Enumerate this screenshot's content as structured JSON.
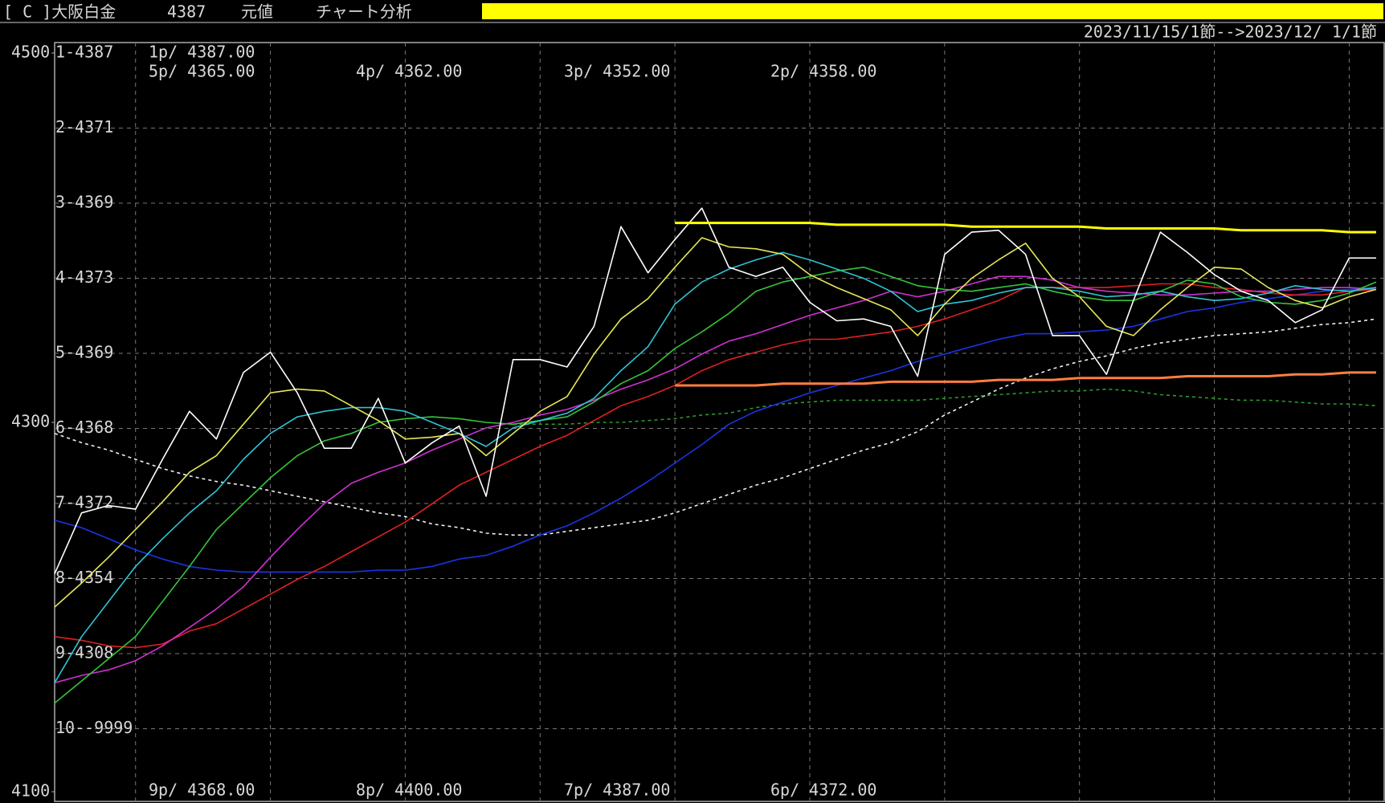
{
  "header": {
    "code": "[ C ]大阪白金",
    "price": "4387",
    "mode": "元値",
    "menu": "チャート分析",
    "period": "2023/11/15/1節-->2023/12/ 1/1節"
  },
  "panel_labels": [
    "1-4387",
    "2-4371",
    "3-4369",
    "4-4373",
    "5-4369",
    "6-4368",
    "7-4372",
    "8-4354",
    "9-4308",
    "10--9999"
  ],
  "top_price_labels": [
    "1p/ 4387.00",
    "5p/ 4365.00",
    "4p/ 4362.00",
    "3p/ 4352.00",
    "2p/ 4358.00"
  ],
  "bottom_price_labels": [
    "9p/ 4368.00",
    "8p/ 4400.00",
    "7p/ 4387.00",
    "6p/ 4372.00"
  ],
  "chart_data": {
    "type": "line",
    "categories": [
      null,
      null,
      null,
      null,
      null,
      null,
      null,
      null,
      null,
      null,
      null,
      null,
      null,
      null,
      null,
      null,
      null,
      null,
      null,
      null,
      null,
      null,
      null,
      null,
      null,
      null,
      null,
      null,
      null,
      null,
      null,
      null,
      null,
      null,
      null,
      null,
      null,
      null,
      null,
      null,
      null,
      null,
      null,
      null,
      null,
      null,
      null,
      null,
      null,
      null
    ],
    "ylim": [
      4100,
      4500
    ],
    "yticks": [
      4100,
      4300,
      4500
    ],
    "grid": true,
    "series": [
      {
        "color": "#f0f0f0",
        "dashed": true,
        "values": [
          4294,
          4289,
          4285,
          4280,
          4275,
          4271,
          4268,
          4266,
          4263,
          4260,
          4257,
          4254,
          4251,
          4249,
          4245,
          4243,
          4240,
          4239,
          4239,
          4241,
          4243,
          4245,
          4247,
          4251,
          4256,
          4261,
          4266,
          4270,
          4275,
          4280,
          4285,
          4289,
          4295,
          4304,
          4311,
          4318,
          4324,
          4329,
          4333,
          4336,
          4340,
          4343,
          4345,
          4347,
          4348,
          4349,
          4351,
          4353,
          4354,
          4356
        ]
      },
      {
        "color": "#2a9a2a",
        "dashed": true,
        "values": [
          null,
          null,
          null,
          null,
          null,
          null,
          null,
          null,
          null,
          null,
          null,
          null,
          null,
          null,
          null,
          null,
          null,
          4299,
          4299,
          4299,
          4300,
          4300,
          4301,
          4302,
          4304,
          4305,
          4308,
          4310,
          4311,
          4312,
          4312,
          4312,
          4312,
          4313,
          4314,
          4315,
          4316,
          4317,
          4317,
          4318,
          4317,
          4315,
          4314,
          4313,
          4312,
          4312,
          4311,
          4310,
          4310,
          4309
        ]
      },
      {
        "color": "#1a34e8",
        "values": [
          4247,
          4243,
          4237,
          4231,
          4226,
          4222,
          4220,
          4219,
          4219,
          4219,
          4219,
          4219,
          4220,
          4220,
          4222,
          4226,
          4228,
          4233,
          4239,
          4244,
          4251,
          4259,
          4268,
          4278,
          4288,
          4299,
          4306,
          4311,
          4316,
          4320,
          4324,
          4328,
          4333,
          4337,
          4341,
          4345,
          4348,
          4348,
          4349,
          4350,
          4352,
          4356,
          4360,
          4362,
          4365,
          4367,
          4369,
          4371,
          4372,
          4373
        ]
      },
      {
        "color": "#e02020",
        "values": [
          4184,
          4182,
          4179,
          4178,
          4180,
          4187,
          4191,
          4199,
          4207,
          4215,
          4222,
          4230,
          4238,
          4246,
          4256,
          4266,
          4273,
          4280,
          4287,
          4293,
          4301,
          4309,
          4314,
          4320,
          4328,
          4334,
          4338,
          4342,
          4345,
          4345,
          4347,
          4349,
          4352,
          4356,
          4361,
          4366,
          4373,
          4373,
          4373,
          4373,
          4374,
          4375,
          4375,
          4373,
          4372,
          4370,
          4369,
          4369,
          4371,
          4372
        ]
      },
      {
        "color": "#d030d0",
        "values": [
          4159,
          4163,
          4166,
          4171,
          4179,
          4189,
          4199,
          4211,
          4227,
          4242,
          4256,
          4267,
          4273,
          4278,
          4285,
          4291,
          4297,
          4300,
          4304,
          4307,
          4312,
          4318,
          4323,
          4329,
          4337,
          4344,
          4348,
          4353,
          4358,
          4362,
          4366,
          4371,
          4368,
          4371,
          4375,
          4379,
          4379,
          4377,
          4373,
          4371,
          4370,
          4369,
          4369,
          4370,
          4371,
          4371,
          4372,
          4373,
          4373,
          4372
        ]
      },
      {
        "color": "#34c43a",
        "values": [
          4148,
          4160,
          4172,
          4184,
          4203,
          4222,
          4242,
          4256,
          4270,
          4282,
          4290,
          4294,
          4300,
          4302,
          4303,
          4302,
          4300,
          4299,
          4301,
          4303,
          4311,
          4321,
          4328,
          4340,
          4349,
          4359,
          4371,
          4376,
          4379,
          4382,
          4384,
          4379,
          4374,
          4372,
          4371,
          4373,
          4375,
          4371,
          4368,
          4366,
          4366,
          4371,
          4377,
          4375,
          4368,
          4365,
          4364,
          4366,
          4370,
          4376
        ]
      },
      {
        "color": "#2ec4d4",
        "values": [
          4159,
          4184,
          4203,
          4222,
          4237,
          4251,
          4263,
          4280,
          4294,
          4303,
          4306,
          4308,
          4308,
          4306,
          4300,
          4294,
          4287,
          4297,
          4301,
          4305,
          4313,
          4328,
          4341,
          4364,
          4376,
          4383,
          4388,
          4392,
          4388,
          4383,
          4378,
          4371,
          4360,
          4364,
          4366,
          4370,
          4373,
          4373,
          4371,
          4368,
          4369,
          4371,
          4368,
          4366,
          4367,
          4370,
          4374,
          4372,
          4371,
          4373
        ]
      },
      {
        "color": "#e6e65a",
        "values": [
          4200,
          4213,
          4227,
          4242,
          4257,
          4273,
          4282,
          4299,
          4316,
          4318,
          4317,
          4309,
          4301,
          4291,
          4292,
          4294,
          4282,
          4294,
          4306,
          4314,
          4337,
          4356,
          4367,
          4384,
          4400,
          4395,
          4394,
          4391,
          4380,
          4373,
          4367,
          4361,
          4347,
          4364,
          4378,
          4388,
          4397,
          4378,
          4368,
          4352,
          4347,
          4361,
          4373,
          4384,
          4383,
          4373,
          4366,
          4362,
          4368,
          4372
        ]
      },
      {
        "color": "#ffffff",
        "values": [
          4218,
          4251,
          4255,
          4253,
          4280,
          4306,
          4291,
          4327,
          4338,
          4316,
          4286,
          4286,
          4313,
          4278,
          4289,
          4298,
          4260,
          4334,
          4334,
          4330,
          4352,
          4406,
          4381,
          4399,
          4416,
          4384,
          4379,
          4384,
          4365,
          4355,
          4356,
          4352,
          4325,
          4391,
          4403,
          4404,
          4391,
          4347,
          4347,
          4326,
          4366,
          4403,
          4392,
          4380,
          4371,
          4366,
          4354,
          4361,
          4389,
          4389
        ]
      },
      {
        "color": "#ffff00",
        "thick": true,
        "values": [
          null,
          null,
          null,
          null,
          null,
          null,
          null,
          null,
          null,
          null,
          null,
          null,
          null,
          null,
          null,
          null,
          null,
          null,
          null,
          null,
          null,
          null,
          null,
          4408,
          4408,
          4408,
          4408,
          4408,
          4408,
          4407,
          4407,
          4407,
          4407,
          4407,
          4406,
          4406,
          4406,
          4406,
          4406,
          4405,
          4405,
          4405,
          4405,
          4405,
          4404,
          4404,
          4404,
          4404,
          4403,
          4403
        ]
      },
      {
        "color": "#ff7f3f",
        "thick": true,
        "values": [
          null,
          null,
          null,
          null,
          null,
          null,
          null,
          null,
          null,
          null,
          null,
          null,
          null,
          null,
          null,
          null,
          null,
          null,
          null,
          null,
          null,
          null,
          null,
          4320,
          4320,
          4320,
          4320,
          4321,
          4321,
          4321,
          4321,
          4322,
          4322,
          4322,
          4322,
          4323,
          4323,
          4323,
          4324,
          4324,
          4324,
          4324,
          4325,
          4325,
          4325,
          4325,
          4326,
          4326,
          4327,
          4327
        ]
      }
    ]
  }
}
